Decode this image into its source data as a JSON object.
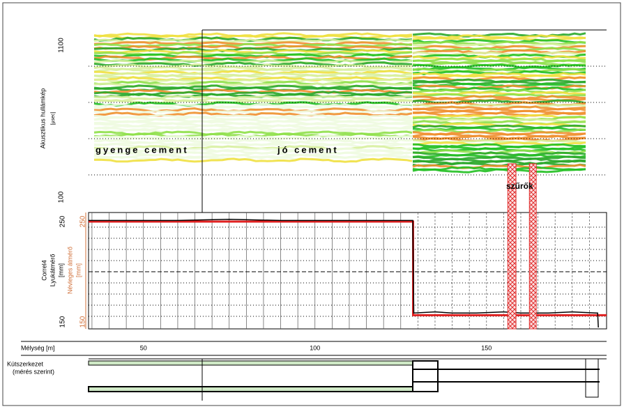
{
  "chart_data": [
    {
      "type": "image",
      "ylabel": "Akusztikus hullámkép",
      "yunit": "[µsec]",
      "ylim": [
        100,
        1100
      ],
      "yticks": [
        100,
        1100
      ],
      "ygrid": [
        300,
        500,
        700,
        900
      ],
      "annotations": [
        "gyenge cement",
        "jó cement",
        "szűrők"
      ],
      "filters": [
        [
          156.2,
          158.6
        ],
        [
          162.5,
          164.5
        ]
      ]
    },
    {
      "type": "line",
      "ylabel": "Correl4",
      "ylabel2": "Lyukátmérő",
      "yunit": "[mm]",
      "y2label": "Névleges átmérő",
      "y2unit": "[mm]",
      "xlabel": "Mélység [m]",
      "xlim": [
        34,
        185
      ],
      "xticks": [
        50,
        100,
        150
      ],
      "xgrid": [
        35,
        40,
        45,
        50,
        55,
        60,
        65,
        70,
        75,
        80,
        85,
        90,
        95,
        100,
        105,
        110,
        115,
        120,
        125,
        130,
        135,
        140,
        145,
        150,
        155,
        160,
        165,
        170,
        175,
        180
      ],
      "ylim": [
        150,
        250
      ],
      "yticks": [
        150,
        250
      ],
      "ygrid": [
        160,
        170,
        180,
        190,
        200,
        210,
        220,
        230,
        240
      ],
      "y2ticks": [
        150,
        250
      ],
      "y2color": "#d0703a",
      "series": [
        {
          "name": "Lyukátmérő",
          "color": "#000000",
          "x": [
            34,
            60,
            75,
            90,
            110,
            128.5,
            128.8,
            135,
            140,
            147,
            155,
            160,
            168,
            175,
            182,
            182.4,
            182.6
          ],
          "values": [
            246,
            246,
            247,
            246,
            246,
            246,
            163,
            164,
            163,
            163,
            164,
            163,
            163,
            164,
            163,
            163,
            150
          ]
        },
        {
          "name": "Névleges átmérő",
          "color": "#e02020",
          "x": [
            34,
            128.6,
            128.6,
            185
          ],
          "values": [
            245,
            245,
            161,
            161
          ]
        }
      ]
    },
    {
      "type": "structure",
      "label": "Kútszerkezet",
      "sublabel": "(mérés szerint)"
    }
  ]
}
